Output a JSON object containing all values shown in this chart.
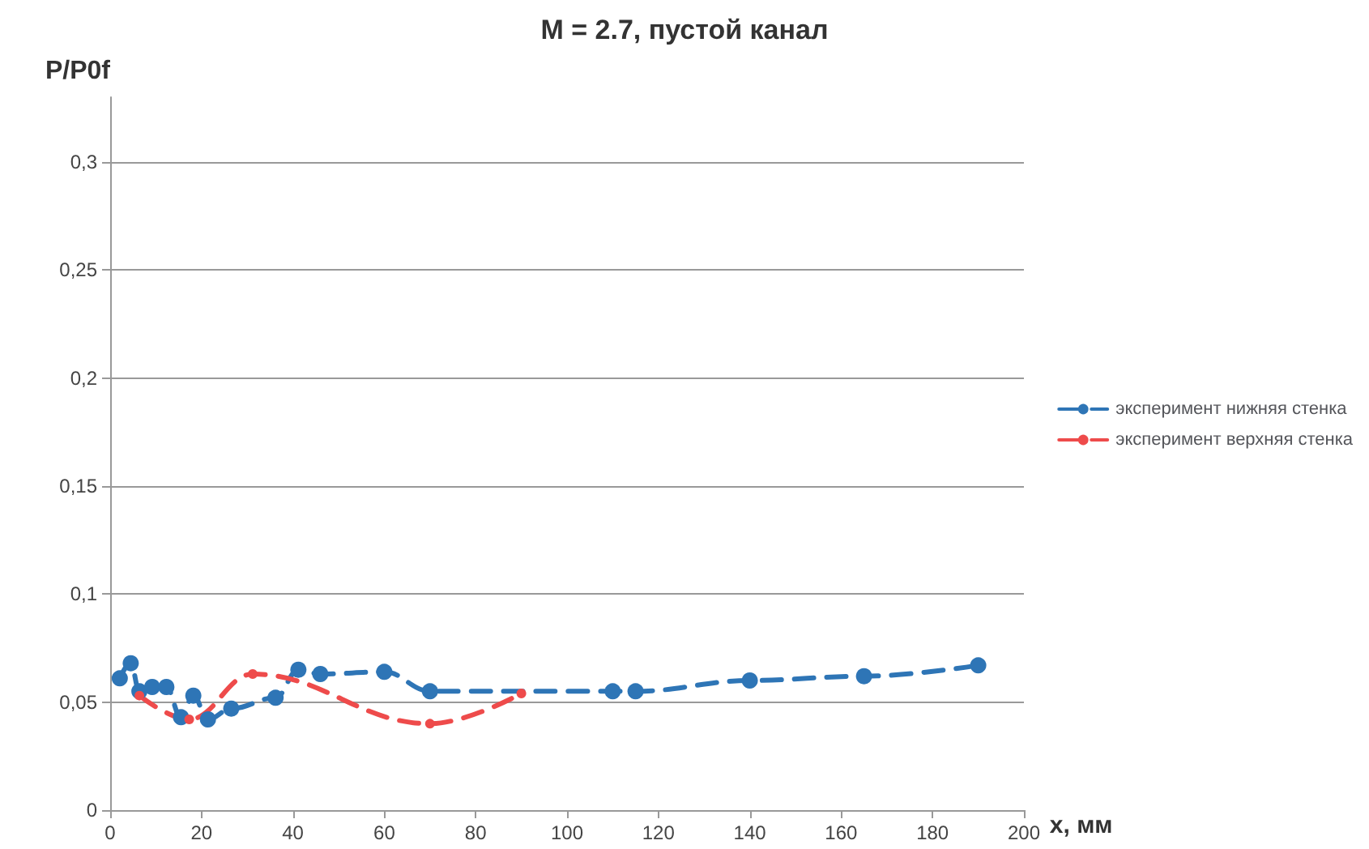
{
  "chart_data": {
    "type": "line",
    "title": "M = 2.7, пустой канал",
    "xlabel": "x, мм",
    "ylabel": "P/P0f",
    "xlim": [
      0,
      200
    ],
    "xticks": [
      0,
      20,
      40,
      60,
      80,
      100,
      120,
      140,
      160,
      180,
      200
    ],
    "ylim": [
      0,
      0.33
    ],
    "yticks": [
      {
        "value": 0,
        "label": "0"
      },
      {
        "value": 0.05,
        "label": "0,05"
      },
      {
        "value": 0.1,
        "label": "0,1"
      },
      {
        "value": 0.15,
        "label": "0,15"
      },
      {
        "value": 0.2,
        "label": "0,2"
      },
      {
        "value": 0.25,
        "label": "0,25"
      },
      {
        "value": 0.3,
        "label": "0,3"
      }
    ],
    "grid": "y",
    "legend": "right",
    "marker": "circle",
    "line_style": "dashed",
    "series": [
      {
        "name": "эксперимент нижняя стенка",
        "color": "#2e75b6",
        "x": [
          2.1,
          4.5,
          6.4,
          9.2,
          12.3,
          15.5,
          18.2,
          21.4,
          26.5,
          36.2,
          41.2,
          46,
          60,
          70,
          110,
          115,
          140,
          165,
          190
        ],
        "values": [
          0.061,
          0.068,
          0.055,
          0.057,
          0.057,
          0.043,
          0.053,
          0.042,
          0.047,
          0.052,
          0.065,
          0.063,
          0.064,
          0.055,
          0.055,
          0.055,
          0.06,
          0.062,
          0.067
        ]
      },
      {
        "name": "эксперимент верхняя стенка",
        "color": "#ee4b4b",
        "x": [
          6.4,
          17.3,
          31.2,
          70,
          90
        ],
        "values": [
          0.053,
          0.042,
          0.063,
          0.04,
          0.054
        ]
      }
    ]
  }
}
